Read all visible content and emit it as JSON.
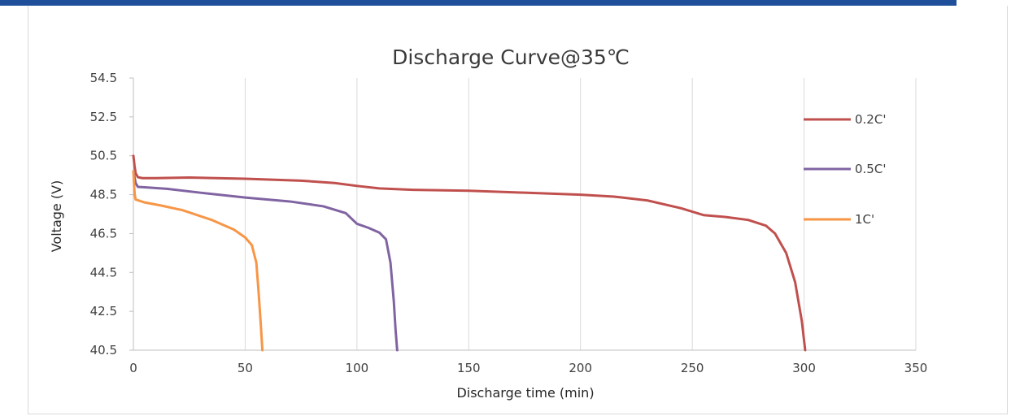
{
  "chart_data": {
    "type": "line",
    "title": "Discharge Curve@35℃",
    "xlabel": "Discharge time (min)",
    "ylabel": "Voltage (V)",
    "xlim": [
      0,
      350
    ],
    "ylim": [
      40.5,
      54.5
    ],
    "x_ticks": [
      "0",
      "50",
      "100",
      "150",
      "200",
      "250",
      "300",
      "350"
    ],
    "y_ticks": [
      "54.5",
      "52.5",
      "50.5",
      "48.5",
      "46.5",
      "44.5",
      "42.5",
      "40.5"
    ],
    "grid": "vertical",
    "legend_position": "right",
    "series": [
      {
        "name": "0.2C'",
        "color": "#c0504d",
        "points": [
          [
            0,
            50.5
          ],
          [
            0.5,
            50.0
          ],
          [
            1,
            49.6
          ],
          [
            2,
            49.4
          ],
          [
            4,
            49.35
          ],
          [
            10,
            49.35
          ],
          [
            25,
            49.38
          ],
          [
            50,
            49.32
          ],
          [
            75,
            49.22
          ],
          [
            90,
            49.1
          ],
          [
            100,
            48.95
          ],
          [
            110,
            48.82
          ],
          [
            125,
            48.75
          ],
          [
            150,
            48.7
          ],
          [
            175,
            48.6
          ],
          [
            200,
            48.5
          ],
          [
            215,
            48.4
          ],
          [
            230,
            48.2
          ],
          [
            245,
            47.8
          ],
          [
            255,
            47.45
          ],
          [
            265,
            47.35
          ],
          [
            275,
            47.2
          ],
          [
            283,
            46.9
          ],
          [
            287,
            46.5
          ],
          [
            292,
            45.5
          ],
          [
            296,
            44.0
          ],
          [
            299,
            42.0
          ],
          [
            300.5,
            40.5
          ]
        ]
      },
      {
        "name": "0.5C'",
        "color": "#8064a2",
        "points": [
          [
            0,
            49.7
          ],
          [
            0.5,
            49.4
          ],
          [
            1,
            49.1
          ],
          [
            2,
            48.9
          ],
          [
            5,
            48.88
          ],
          [
            15,
            48.8
          ],
          [
            30,
            48.6
          ],
          [
            50,
            48.35
          ],
          [
            70,
            48.15
          ],
          [
            85,
            47.9
          ],
          [
            95,
            47.55
          ],
          [
            100,
            47.0
          ],
          [
            105,
            46.8
          ],
          [
            110,
            46.55
          ],
          [
            113,
            46.2
          ],
          [
            115,
            45.0
          ],
          [
            116.5,
            43.0
          ],
          [
            117.3,
            41.5
          ],
          [
            118,
            40.5
          ]
        ]
      },
      {
        "name": "1C'",
        "color": "#f79646",
        "points": [
          [
            0,
            49.7
          ],
          [
            0.3,
            49.0
          ],
          [
            0.6,
            48.5
          ],
          [
            1,
            48.25
          ],
          [
            5,
            48.1
          ],
          [
            12,
            47.95
          ],
          [
            22,
            47.7
          ],
          [
            35,
            47.2
          ],
          [
            45,
            46.7
          ],
          [
            50,
            46.3
          ],
          [
            53,
            45.9
          ],
          [
            55,
            45.0
          ],
          [
            56,
            43.5
          ],
          [
            57,
            41.8
          ],
          [
            57.7,
            40.5
          ]
        ]
      }
    ]
  }
}
